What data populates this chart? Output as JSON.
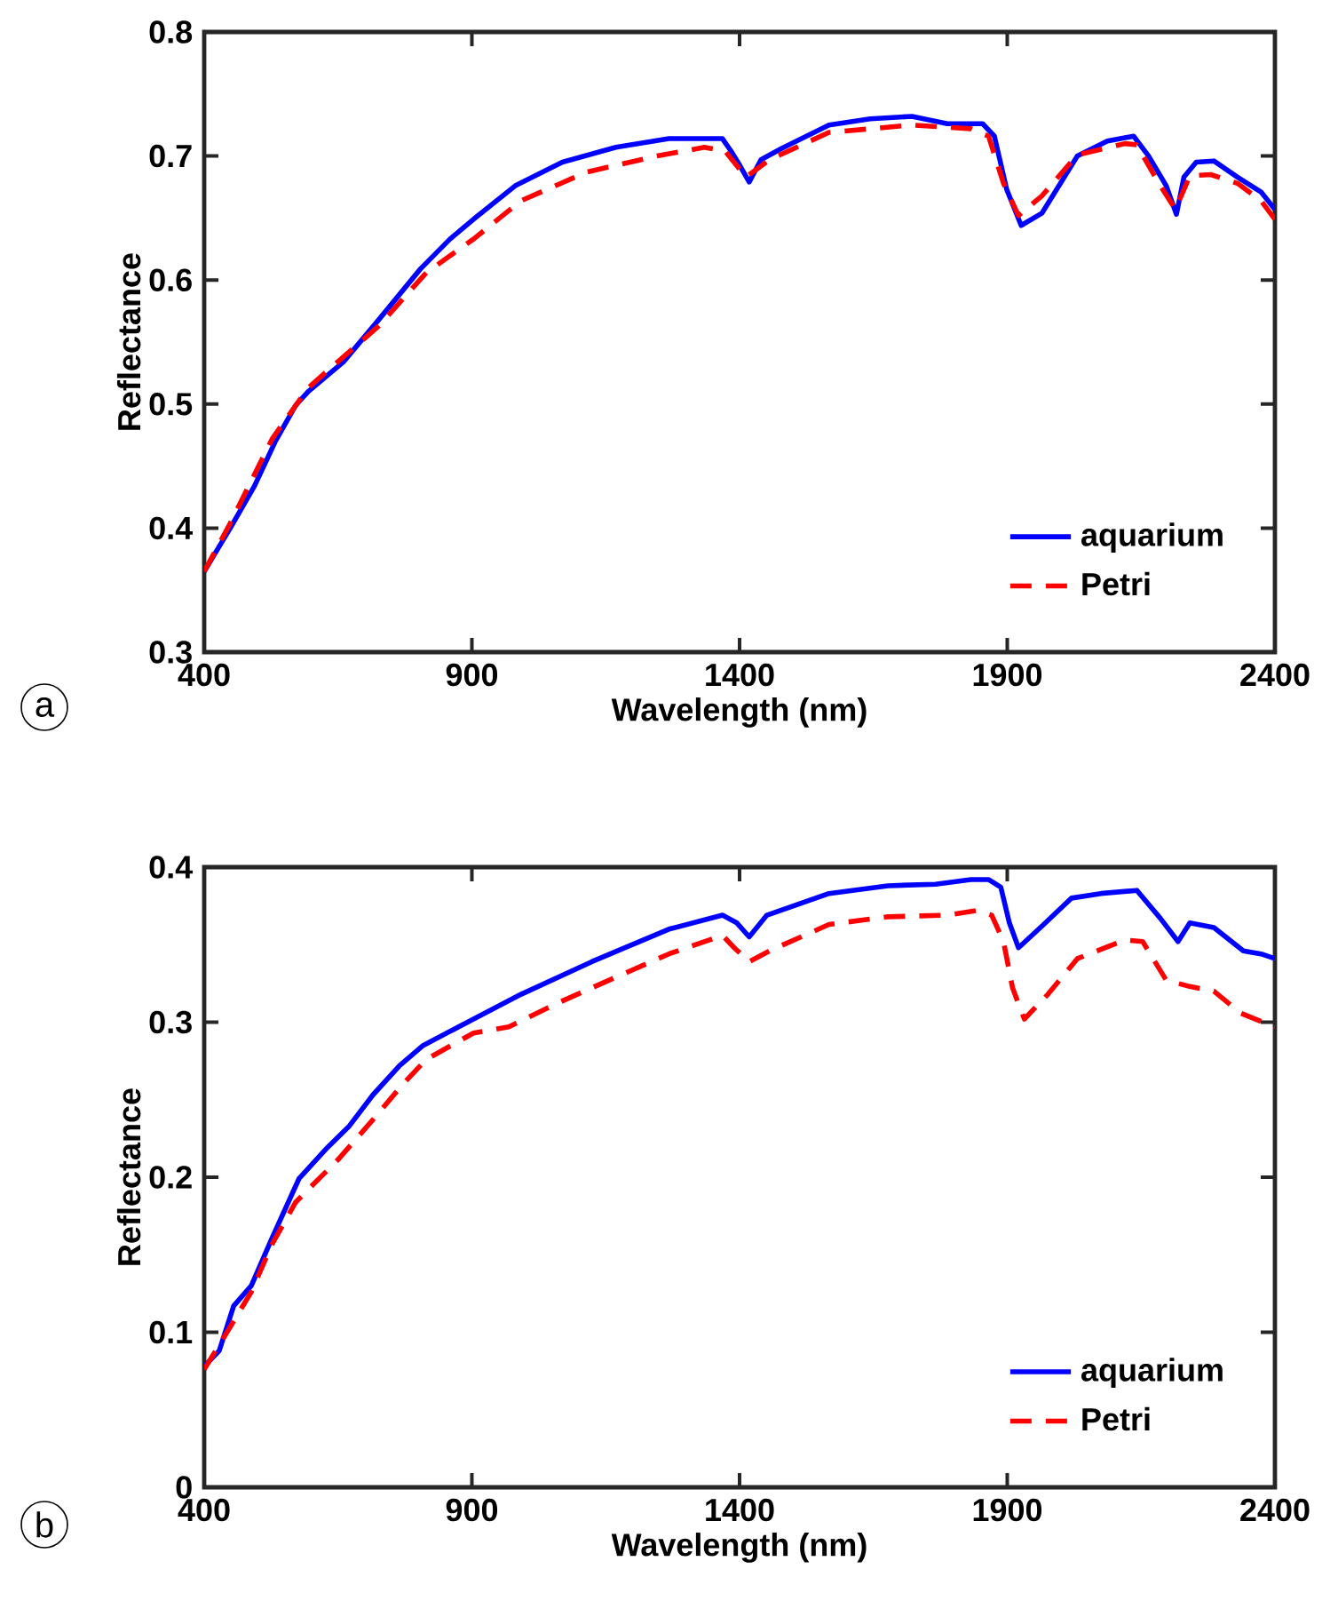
{
  "chart_data": [
    {
      "type": "line",
      "xlabel": "Wavelength (nm)",
      "ylabel": "Reflectance",
      "annotations": [
        "a"
      ],
      "xlim": [
        400,
        2400
      ],
      "ylim": [
        0.3,
        0.8
      ],
      "xticks": [
        400,
        900,
        1400,
        1900,
        2400
      ],
      "yticks": [
        0.3,
        0.4,
        0.5,
        0.6,
        0.7,
        0.8
      ],
      "legend": "bottom right",
      "series": [
        {
          "name": "aquarium",
          "color": "#0000ff",
          "line_style": "solid",
          "x": [
            400,
            450,
            494,
            533,
            571,
            594,
            660,
            726,
            804,
            859,
            903,
            981,
            1069,
            1169,
            1268,
            1368,
            1384,
            1401,
            1418,
            1440,
            1478,
            1567,
            1644,
            1722,
            1788,
            1854,
            1876,
            1899,
            1926,
            1965,
            2031,
            2087,
            2136,
            2164,
            2197,
            2216,
            2230,
            2253,
            2286,
            2330,
            2374,
            2400
          ],
          "values": [
            0.365,
            0.401,
            0.434,
            0.47,
            0.499,
            0.51,
            0.534,
            0.568,
            0.609,
            0.633,
            0.649,
            0.676,
            0.695,
            0.707,
            0.714,
            0.714,
            0.704,
            0.692,
            0.679,
            0.697,
            0.706,
            0.725,
            0.73,
            0.732,
            0.726,
            0.726,
            0.716,
            0.673,
            0.644,
            0.654,
            0.7,
            0.712,
            0.716,
            0.7,
            0.676,
            0.653,
            0.683,
            0.695,
            0.696,
            0.683,
            0.671,
            0.657
          ]
        },
        {
          "name": "Petri",
          "color": "#ff0000",
          "line_style": "dashed",
          "x": [
            400,
            450,
            527,
            594,
            726,
            815,
            903,
            992,
            1114,
            1246,
            1334,
            1373,
            1412,
            1456,
            1567,
            1722,
            1832,
            1865,
            1893,
            1921,
            1965,
            2031,
            2120,
            2142,
            2186,
            2214,
            2241,
            2280,
            2330,
            2374,
            2400
          ],
          "values": [
            0.365,
            0.405,
            0.472,
            0.513,
            0.563,
            0.606,
            0.633,
            0.664,
            0.687,
            0.7,
            0.707,
            0.704,
            0.683,
            0.697,
            0.719,
            0.725,
            0.722,
            0.716,
            0.678,
            0.652,
            0.668,
            0.701,
            0.71,
            0.709,
            0.676,
            0.657,
            0.684,
            0.685,
            0.678,
            0.664,
            0.649
          ]
        }
      ]
    },
    {
      "type": "line",
      "xlabel": "Wavelength (nm)",
      "ylabel": "Reflectance",
      "annotations": [
        "b"
      ],
      "xlim": [
        400,
        2400
      ],
      "ylim": [
        0,
        0.4
      ],
      "xticks": [
        400,
        900,
        1400,
        1900,
        2400
      ],
      "yticks": [
        0,
        0.1,
        0.2,
        0.3,
        0.4
      ],
      "legend": "bottom right",
      "series": [
        {
          "name": "aquarium",
          "color": "#0000ff",
          "line_style": "solid",
          "x": [
            400,
            428,
            455,
            488,
            527,
            577,
            627,
            671,
            715,
            765,
            809,
            892,
            992,
            1124,
            1268,
            1368,
            1395,
            1418,
            1451,
            1567,
            1677,
            1766,
            1832,
            1865,
            1888,
            1904,
            1921,
            1965,
            2020,
            2075,
            2142,
            2186,
            2219,
            2241,
            2286,
            2341,
            2374,
            2400
          ],
          "values": [
            0.078,
            0.088,
            0.117,
            0.13,
            0.161,
            0.199,
            0.218,
            0.233,
            0.253,
            0.272,
            0.285,
            0.3,
            0.318,
            0.339,
            0.36,
            0.369,
            0.364,
            0.355,
            0.369,
            0.383,
            0.388,
            0.389,
            0.392,
            0.392,
            0.387,
            0.364,
            0.348,
            0.362,
            0.38,
            0.383,
            0.385,
            0.367,
            0.352,
            0.364,
            0.361,
            0.346,
            0.344,
            0.341
          ]
        },
        {
          "name": "Petri",
          "color": "#ff0000",
          "line_style": "dashed",
          "x": [
            400,
            439,
            488,
            527,
            571,
            649,
            715,
            771,
            815,
            903,
            969,
            1058,
            1169,
            1268,
            1368,
            1390,
            1418,
            1456,
            1567,
            1677,
            1788,
            1843,
            1871,
            1893,
            1910,
            1932,
            1976,
            2031,
            2120,
            2153,
            2197,
            2241,
            2286,
            2335,
            2385,
            2400
          ],
          "values": [
            0.076,
            0.098,
            0.126,
            0.157,
            0.184,
            0.211,
            0.237,
            0.26,
            0.276,
            0.293,
            0.297,
            0.312,
            0.329,
            0.344,
            0.356,
            0.348,
            0.339,
            0.346,
            0.363,
            0.368,
            0.369,
            0.372,
            0.369,
            0.352,
            0.322,
            0.302,
            0.318,
            0.341,
            0.353,
            0.352,
            0.327,
            0.323,
            0.32,
            0.306,
            0.299,
            0.297
          ]
        }
      ]
    }
  ]
}
